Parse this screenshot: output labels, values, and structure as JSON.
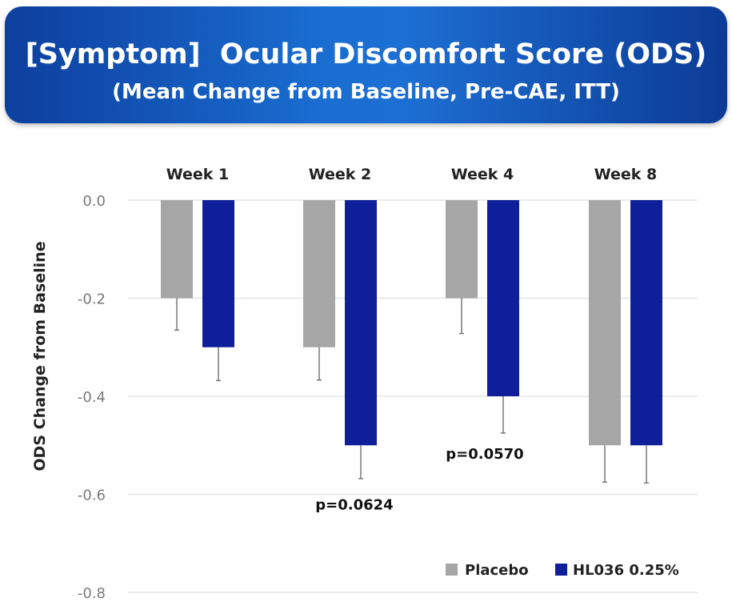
{
  "header": {
    "title": "[Symptom]  Ocular Discomfort Score (ODS)",
    "subtitle": "(Mean Change from Baseline, Pre-CAE, ITT)"
  },
  "colors": {
    "placebo": "#a6a6a6",
    "hl036": "#0f1f9a",
    "grid": "#e6e6e6"
  },
  "chart_data": {
    "type": "bar",
    "categories": [
      "Week 1",
      "Week 2",
      "Week 4",
      "Week 8"
    ],
    "ylabel": "ODS Change from Baseline",
    "ylim": [
      -0.8,
      0.0
    ],
    "yticks": [
      "0.0",
      "-0.2",
      "-0.4",
      "-0.6",
      "-0.8"
    ],
    "ytick_values": [
      0.0,
      -0.2,
      -0.4,
      -0.6,
      -0.8
    ],
    "grid": true,
    "legend_position": "bottom-right",
    "series": [
      {
        "name": "Placebo",
        "values": [
          -0.2,
          -0.3,
          -0.2,
          -0.5
        ],
        "error": [
          0.065,
          0.067,
          0.072,
          0.075
        ]
      },
      {
        "name": "HL036 0.25%",
        "values": [
          -0.3,
          -0.5,
          -0.4,
          -0.5
        ],
        "error": [
          0.068,
          0.068,
          0.075,
          0.077
        ]
      }
    ],
    "annotations": [
      {
        "text": "p=0.0624",
        "category": "Week 2",
        "series": "HL036 0.25%"
      },
      {
        "text": "p=0.0570",
        "category": "Week 4",
        "series": "HL036 0.25%"
      }
    ]
  }
}
